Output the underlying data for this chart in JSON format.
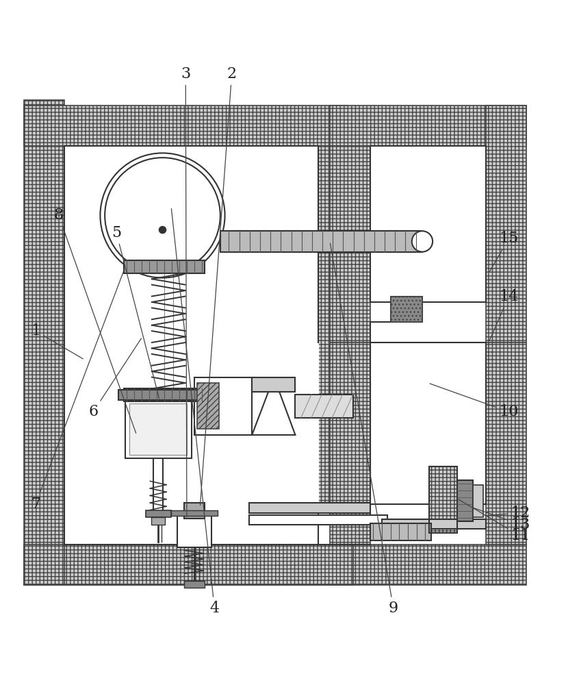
{
  "bg_color": "#ffffff",
  "line_color": "#333333",
  "figsize": [
    8.46,
    10.0
  ],
  "dpi": 100,
  "labels_final": {
    "1": [
      0.06,
      0.52,
      0.145,
      0.47
    ],
    "2": [
      0.4,
      0.965,
      0.345,
      0.215
    ],
    "3": [
      0.32,
      0.965,
      0.322,
      0.195
    ],
    "4": [
      0.37,
      0.04,
      0.295,
      0.735
    ],
    "5": [
      0.2,
      0.69,
      0.275,
      0.4
    ],
    "6": [
      0.16,
      0.38,
      0.245,
      0.51
    ],
    "7": [
      0.06,
      0.22,
      0.215,
      0.63
    ],
    "8": [
      0.1,
      0.72,
      0.235,
      0.34
    ],
    "9": [
      0.68,
      0.04,
      0.57,
      0.675
    ],
    "10": [
      0.88,
      0.38,
      0.74,
      0.43
    ],
    "11": [
      0.9,
      0.165,
      0.79,
      0.23
    ],
    "12": [
      0.9,
      0.205,
      0.835,
      0.2
    ],
    "13": [
      0.9,
      0.185,
      0.815,
      0.215
    ],
    "14": [
      0.88,
      0.58,
      0.845,
      0.5
    ],
    "15": [
      0.88,
      0.68,
      0.845,
      0.62
    ]
  }
}
